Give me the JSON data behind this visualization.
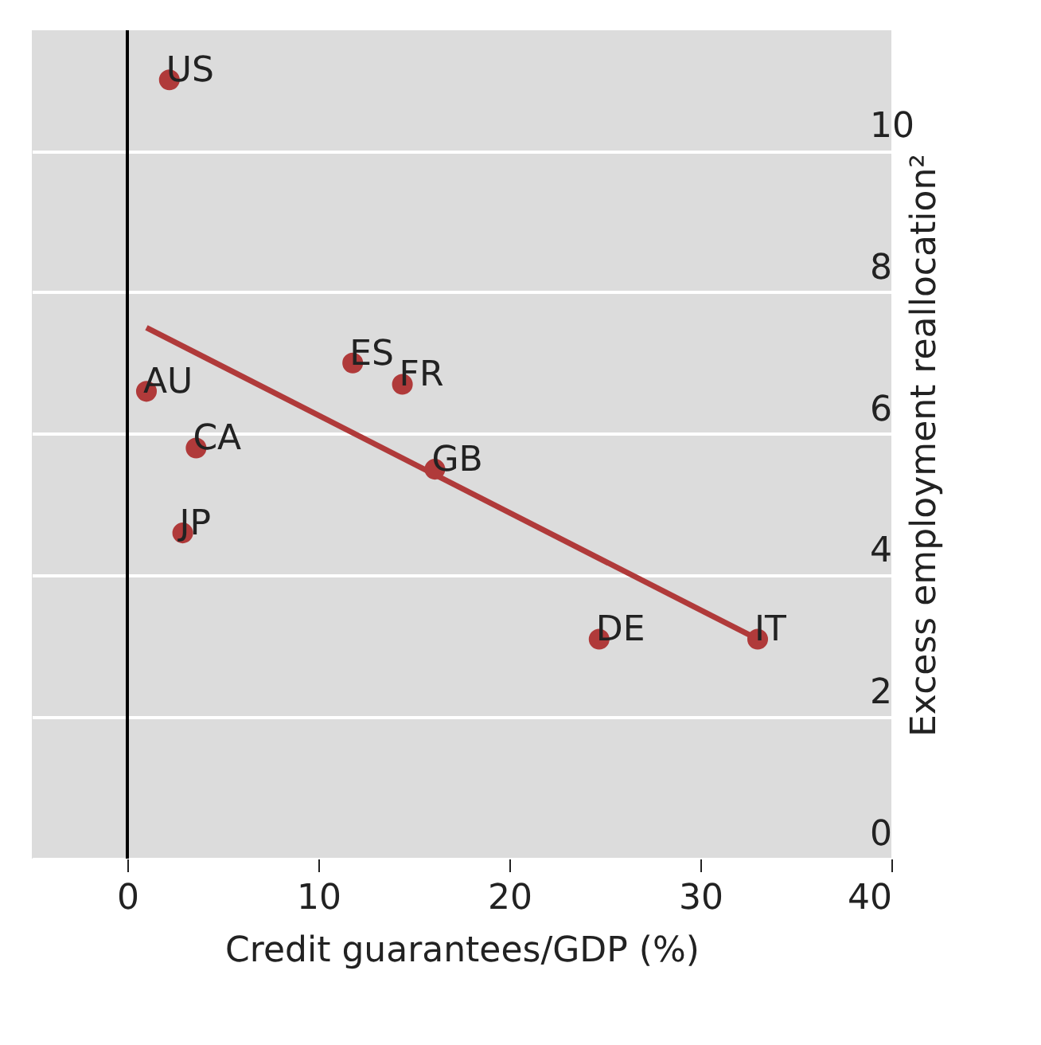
{
  "chart_data": {
    "type": "scatter",
    "xlabel": "Credit guarantees/GDP (%)",
    "ylabel": "Excess employment reallocation²",
    "xlim": [
      -5,
      40
    ],
    "xticks": [
      0,
      10,
      20,
      30,
      40
    ],
    "ylim": [
      0,
      11.7
    ],
    "yticks": [
      0,
      2,
      4,
      6,
      8,
      10
    ],
    "grid": "y",
    "series": [
      {
        "type": "line",
        "color": "#b03a3a",
        "x": [
          1.0,
          33.0
        ],
        "values": [
          7.5,
          3.1
        ]
      },
      {
        "color": "#b03a3a",
        "marker": "circle",
        "x": [
          2.2,
          1.0,
          3.6,
          2.9,
          11.8,
          14.4,
          16.1,
          24.7,
          33.0
        ],
        "values": [
          11.0,
          6.6,
          5.8,
          4.6,
          7.0,
          6.7,
          5.5,
          3.1,
          3.1
        ]
      }
    ],
    "ref_lines": [
      {
        "axis": "x",
        "value": 0,
        "color": "#000000"
      }
    ],
    "annotations": [
      {
        "text": "US",
        "x": 2.2,
        "y": 11.0
      },
      {
        "text": "AU",
        "x": 1.0,
        "y": 6.6
      },
      {
        "text": "CA",
        "x": 3.6,
        "y": 5.8
      },
      {
        "text": "JP",
        "x": 2.9,
        "y": 4.6
      },
      {
        "text": "ES",
        "x": 11.8,
        "y": 7.0
      },
      {
        "text": "FR",
        "x": 14.4,
        "y": 6.7
      },
      {
        "text": "GB",
        "x": 16.1,
        "y": 5.5
      },
      {
        "text": "DE",
        "x": 24.7,
        "y": 3.1
      },
      {
        "text": "IT",
        "x": 33.0,
        "y": 3.1
      }
    ]
  }
}
